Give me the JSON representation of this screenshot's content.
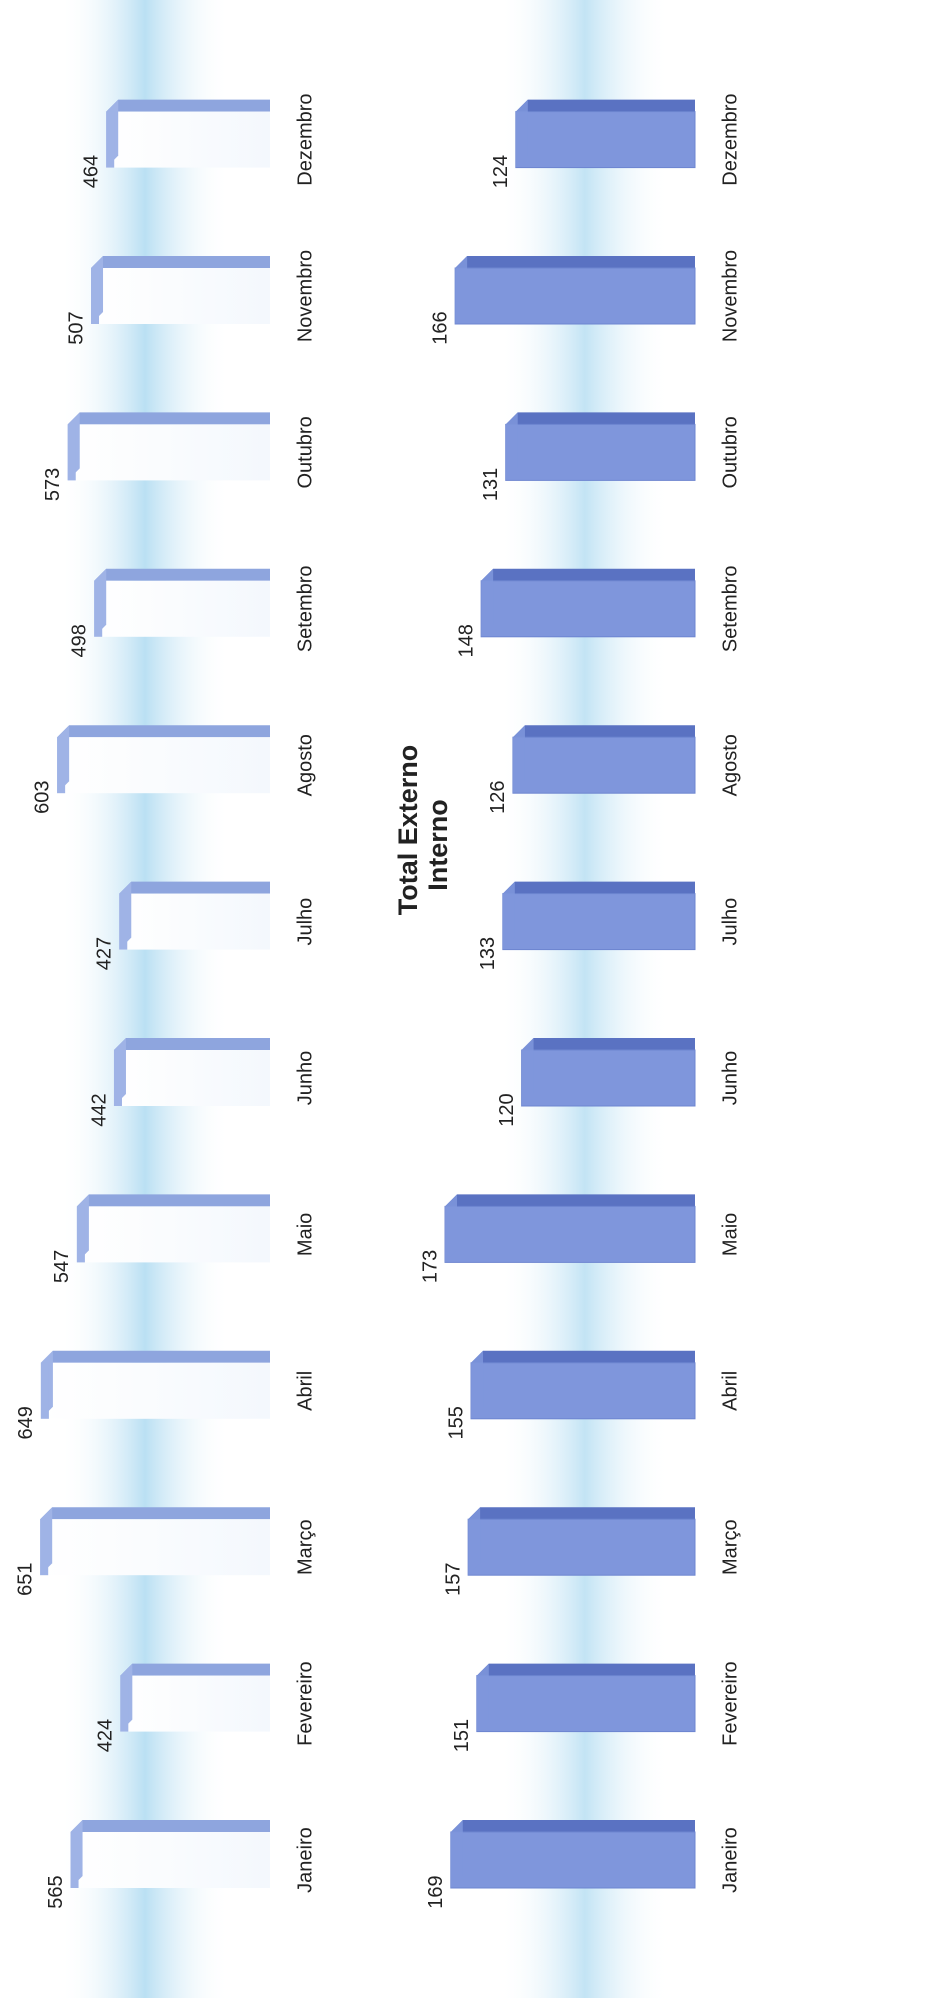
{
  "chart_data": [
    {
      "type": "bar",
      "title": "Total Externo",
      "categories": [
        "Janeiro",
        "Fevereiro",
        "Março",
        "Abril",
        "Maio",
        "Junho",
        "Julho",
        "Agosto",
        "Setembro",
        "Outubro",
        "Novembro",
        "Dezembro"
      ],
      "values": [
        565,
        424,
        651,
        649,
        547,
        442,
        427,
        603,
        498,
        573,
        507,
        464
      ],
      "color": "#9fb3e6"
    },
    {
      "type": "bar",
      "title": "Interno",
      "categories": [
        "Janeiro",
        "Fevereiro",
        "Março",
        "Abril",
        "Maio",
        "Junho",
        "Julho",
        "Agosto",
        "Setembro",
        "Outubro",
        "Novembro",
        "Dezembro"
      ],
      "values": [
        169,
        151,
        157,
        155,
        173,
        120,
        133,
        126,
        148,
        131,
        166,
        124
      ],
      "color": "#7f96dc"
    }
  ]
}
